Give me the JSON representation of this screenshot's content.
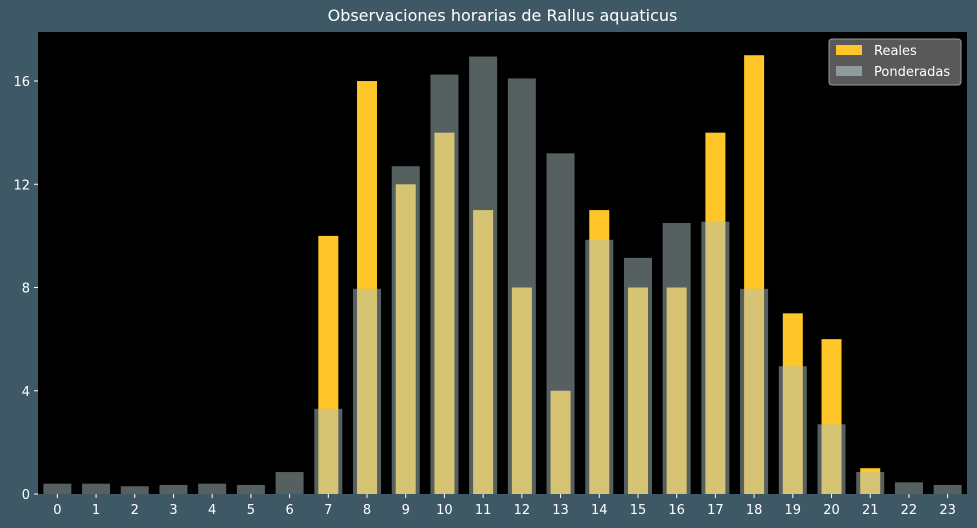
{
  "chart_data": {
    "type": "bar",
    "title": "Observaciones horarias de Rallus aquaticus",
    "xlabel": "",
    "ylabel": "",
    "categories": [
      "0",
      "1",
      "2",
      "3",
      "4",
      "5",
      "6",
      "7",
      "8",
      "9",
      "10",
      "11",
      "12",
      "13",
      "14",
      "15",
      "16",
      "17",
      "18",
      "19",
      "20",
      "21",
      "22",
      "23"
    ],
    "ylim": [
      0,
      17.9
    ],
    "yticks": [
      0,
      4,
      8,
      12,
      16
    ],
    "grid": false,
    "legend_position": "top-right",
    "series": [
      {
        "name": "Reales",
        "color": "#ffc629",
        "values": [
          0,
          0,
          0,
          0,
          0,
          0,
          0,
          10,
          16,
          12,
          14,
          11,
          8,
          4,
          11,
          8,
          8,
          14,
          17,
          7,
          6,
          1,
          0,
          0
        ]
      },
      {
        "name": "Ponderadas",
        "color": "#aebfbf",
        "values": [
          0.4,
          0.4,
          0.3,
          0.35,
          0.4,
          0.35,
          0.85,
          3.3,
          7.95,
          12.7,
          16.25,
          16.95,
          16.1,
          13.2,
          9.85,
          9.15,
          10.5,
          10.55,
          7.95,
          4.95,
          2.7,
          0.85,
          0.45,
          0.35
        ]
      }
    ]
  }
}
